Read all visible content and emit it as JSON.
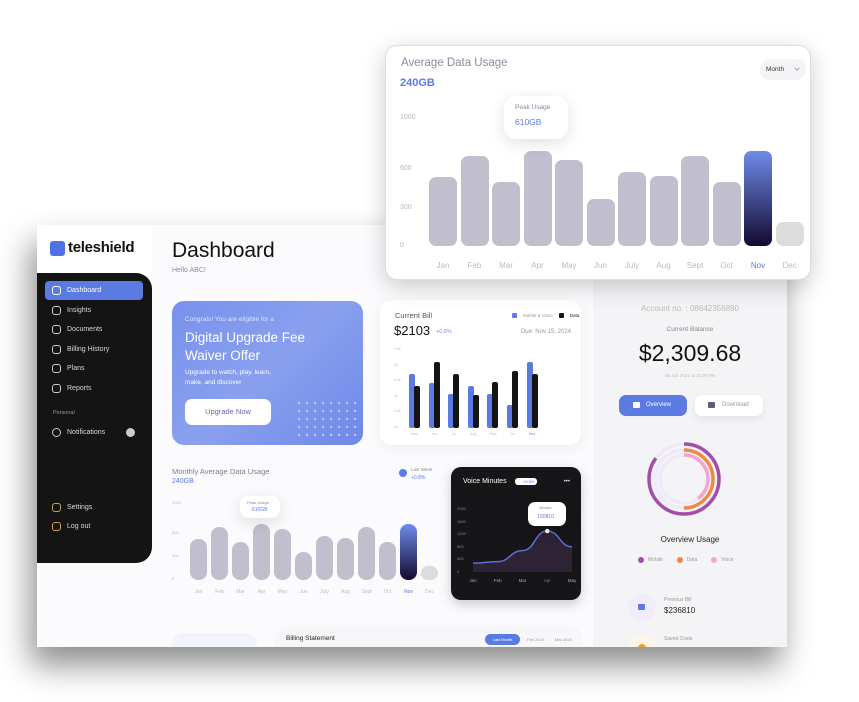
{
  "brand": {
    "name": "teleshield"
  },
  "header": {
    "title": "Dashboard",
    "greeting": "Hello ABC!"
  },
  "sidebar": {
    "items": [
      {
        "label": "Dashboard",
        "icon": "grid-icon"
      },
      {
        "label": "Insights",
        "icon": "insights-icon"
      },
      {
        "label": "Documents",
        "icon": "document-icon"
      },
      {
        "label": "Billing History",
        "icon": "billing-icon"
      },
      {
        "label": "Plans",
        "icon": "plans-icon"
      },
      {
        "label": "Reports",
        "icon": "reports-icon"
      }
    ],
    "section": "Personal",
    "notifications": {
      "label": "Notifications",
      "badge": ""
    },
    "settings": "Settings",
    "logout": "Log out"
  },
  "promo": {
    "eyebrow": "Congrats! You are eligible for a",
    "title": "Digital Upgrade Fee Waiver Offer",
    "body": "Upgrade to watch, play, learn, make, and discover",
    "button": "Upgrade Now"
  },
  "current_bill": {
    "title": "Current Bill",
    "amount": "$2103",
    "change": "+0.8%",
    "due": "Due: Nov 15, 2024",
    "legend": [
      "Mobile & Voice",
      "Data"
    ]
  },
  "monthly_usage": {
    "title": "Monthly Average Data Usage",
    "value": "240GB",
    "last_week_label": "Last Week",
    "last_week_change": "+0.8%",
    "tooltip_label": "Peak Usage",
    "tooltip_value": "610GB"
  },
  "voice": {
    "title": "Voice Minutes",
    "badge": "+0.8%",
    "menu": "•••",
    "tooltip_label": "Minutes",
    "tooltip_value": "150810"
  },
  "account": {
    "number": "Account no. : 08642356890",
    "balance_label": "Current Balance",
    "balance": "$2,309.68",
    "date": "05 Jun 2021 at 11:00 PM",
    "overview_btn": "Overview",
    "download_btn": "Download",
    "usage_title": "Overview Usage",
    "previous_bill_label": "Previous Bill",
    "previous_bill": "$236810",
    "saved_costs_label": "Saved Costs"
  },
  "billing": {
    "title": "Billing Statement",
    "tabs": [
      "Last Month",
      "Feb 2024",
      "Mar 2024"
    ]
  },
  "popup": {
    "title": "Average Data Usage",
    "value": "240GB",
    "dropdown": "Month",
    "tooltip_label": "Peak Usage",
    "tooltip_value": "610GB"
  },
  "chart_data": [
    {
      "type": "bar",
      "title": "Average Data Usage",
      "categories": [
        "Jan",
        "Feb",
        "Mar",
        "Apr",
        "May",
        "Jun",
        "July",
        "Aug",
        "Sept",
        "Oct",
        "Nov",
        "Dec"
      ],
      "values": [
        540,
        700,
        500,
        740,
        670,
        370,
        580,
        550,
        700,
        500,
        740,
        190
      ],
      "yticks": [
        "0",
        "300",
        "600",
        "1000"
      ],
      "ylim": [
        0,
        1000
      ],
      "highlight": "Nov",
      "colors": {
        "bar": "#c1bfce",
        "highlight_top": "#6f8bea",
        "highlight_bottom": "#120a30",
        "future": "#dcdcdc",
        "accent": "#5b7be3"
      }
    },
    {
      "type": "bar",
      "title": "Monthly Average Data Usage",
      "categories": [
        "Jan",
        "Feb",
        "Mar",
        "Apr",
        "May",
        "Jun",
        "July",
        "Aug",
        "Sept",
        "Oct",
        "Nov",
        "Dec"
      ],
      "values": [
        540,
        700,
        500,
        740,
        670,
        370,
        580,
        550,
        700,
        500,
        740,
        190
      ],
      "yticks": [
        "0",
        "300",
        "600",
        "1000"
      ],
      "ylim": [
        0,
        1000
      ],
      "highlight": "Nov"
    },
    {
      "type": "bar",
      "title": "Current Bill",
      "categories": [
        "May",
        "Jun",
        "Jul",
        "Aug",
        "Sept",
        "Oct",
        "Nov"
      ],
      "yticks": [
        "0k",
        "0.5k",
        "1k",
        "1.5k",
        "2k",
        "2.5k"
      ],
      "ylim": [
        0,
        2.5
      ],
      "series": [
        {
          "name": "Mobile & Voice",
          "color": "#5b7be3",
          "values": [
            1.73,
            1.44,
            1.1,
            1.36,
            1.1,
            0.74,
            2.1
          ]
        },
        {
          "name": "Data",
          "color": "#141414",
          "values": [
            1.36,
            2.1,
            1.73,
            1.05,
            1.48,
            1.84,
            1.73
          ]
        }
      ],
      "highlight": "Nov"
    },
    {
      "type": "line",
      "title": "Voice Minutes",
      "categories": [
        "Jan",
        "Feb",
        "Mar",
        "Apr",
        "May"
      ],
      "values": [
        280,
        330,
        680,
        1300,
        800
      ],
      "yticks": [
        "0",
        "400",
        "800",
        "1200",
        "1600",
        "2000"
      ],
      "ylim": [
        0,
        2000
      ],
      "highlight": "Apr",
      "color": "#5b6fd8"
    },
    {
      "type": "pie",
      "title": "Overview Usage",
      "labels": [
        "Mobile",
        "Data",
        "Voice"
      ],
      "values": [
        85,
        50,
        40
      ],
      "colors": [
        "#a14fa8",
        "#ef8a45",
        "#f0a6d0"
      ]
    }
  ]
}
